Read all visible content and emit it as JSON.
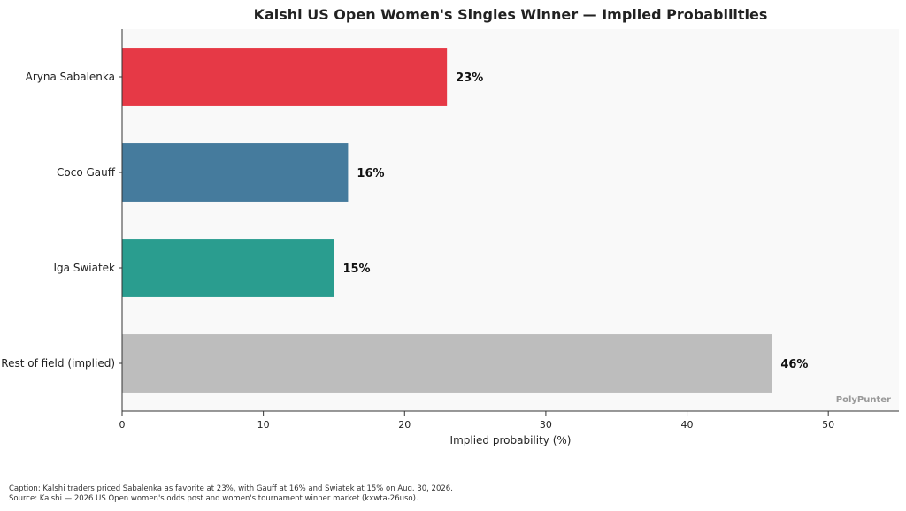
{
  "chart_data": {
    "type": "bar",
    "orientation": "horizontal",
    "title": "Kalshi US Open Women's Singles Winner — Implied Probabilities",
    "xlabel": "Implied probability (%)",
    "ylabel": "",
    "xlim": [
      0,
      55
    ],
    "xticks": [
      0,
      10,
      20,
      30,
      40,
      50
    ],
    "grid": false,
    "categories": [
      "Aryna Sabalenka",
      "Coco Gauff",
      "Iga Swiatek",
      "Rest of field (implied)"
    ],
    "values": [
      23,
      16,
      15,
      46
    ],
    "value_labels": [
      "23%",
      "16%",
      "15%",
      "46%"
    ],
    "colors": [
      "#e63946",
      "#457b9d",
      "#2a9d8f",
      "#bdbdbd"
    ],
    "watermark": "PolyPunter"
  },
  "caption": {
    "line1": "Caption: Kalshi traders priced Sabalenka as favorite at 23%, with Gauff at 16% and Swiatek at 15% on Aug. 30, 2026.",
    "line2": "Source: Kalshi — 2026 US Open women's odds post and women's tournament winner market (kxwta-26uso)."
  }
}
